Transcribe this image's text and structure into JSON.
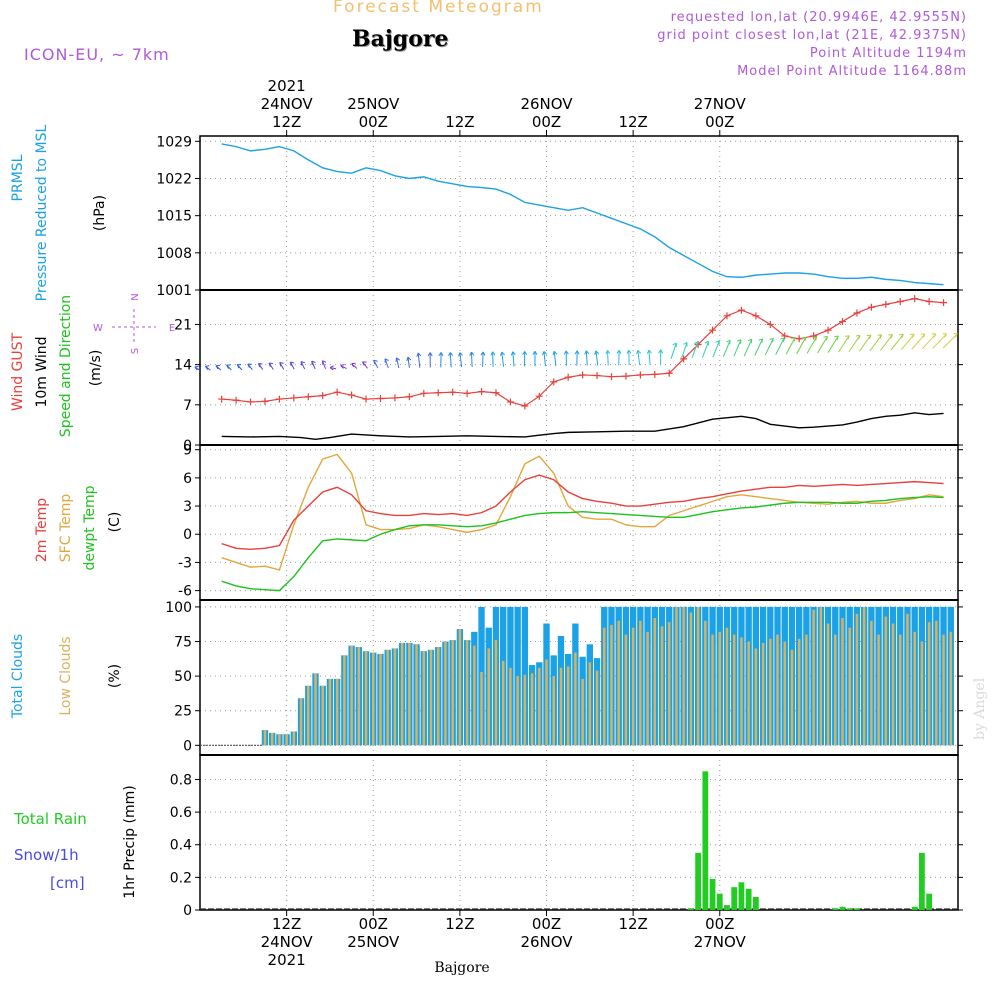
{
  "header": {
    "forecast_label": "Forecast Meteogram",
    "location": "Bajgore",
    "model": "ICON-EU, ~ 7km",
    "requested": "requested lon,lat (20.9946E, 42.9555N)",
    "gridpoint": "grid point closest lon,lat (21E, 42.9375N)",
    "point_alt": "Point Altitude 1194m",
    "model_alt": "Model Point Altitude 1164.88m",
    "footer_location": "Bajgore",
    "watermark": "by Angel"
  },
  "colors": {
    "pressure": "#1ba1e6",
    "gust": "#e8403b",
    "wind10": "#000000",
    "direction_label": "#1dc21d",
    "temp2m": "#e8403b",
    "sfc": "#e2a73c",
    "dew": "#1dc21d",
    "cloud_total": "#1ba1e6",
    "cloud_low": "#d8b25c",
    "rain": "#22cc22",
    "snow": "#4a4ae0",
    "purple": "#b05ad8"
  },
  "chart_data": [
    {
      "type": "line",
      "name": "pressure",
      "title": "PRMSL Pressure Reduced to MSL",
      "ylabel": "(hPa)",
      "ylim": [
        1001,
        1030
      ],
      "yticks": [
        1001,
        1008,
        1015,
        1022,
        1029
      ],
      "x_hours": [
        3,
        5,
        7,
        9,
        11,
        13,
        15,
        17,
        19,
        21,
        23,
        25,
        27,
        29,
        31,
        33,
        35,
        37,
        39,
        41,
        43,
        45,
        47,
        49,
        51,
        53,
        55,
        57,
        59,
        61,
        63,
        65,
        67,
        69,
        71,
        73,
        75,
        77,
        79,
        81,
        83,
        85,
        87,
        89,
        91,
        93,
        95,
        97,
        99,
        101,
        103
      ],
      "values": [
        1028.5,
        1028,
        1027.2,
        1027.5,
        1028,
        1027.2,
        1025.5,
        1024,
        1023.3,
        1023,
        1024,
        1023.5,
        1022.5,
        1022,
        1022.3,
        1021.5,
        1021,
        1020.5,
        1020.3,
        1020,
        1019,
        1017.5,
        1017,
        1016.5,
        1016,
        1016.5,
        1015.5,
        1014.5,
        1013.5,
        1012.5,
        1011,
        1009,
        1007.5,
        1006,
        1004.5,
        1003.5,
        1003.4,
        1003.8,
        1004,
        1004.2,
        1004.2,
        1004,
        1003.5,
        1003.2,
        1003.2,
        1003.4,
        1003,
        1002.8,
        1002.4,
        1002.2,
        1002
      ]
    },
    {
      "type": "line",
      "name": "wind",
      "ylabels": [
        "Wind GUST",
        "10m Wind",
        "Speed and Direction",
        "(m/s)"
      ],
      "ylim": [
        0,
        27
      ],
      "yticks": [
        0,
        7,
        14,
        21
      ],
      "compass": {
        "n": "N",
        "e": "E",
        "s": "S",
        "w": "W"
      },
      "gust_hours": [
        3,
        5,
        7,
        9,
        11,
        13,
        15,
        17,
        19,
        21,
        23,
        25,
        27,
        29,
        31,
        33,
        35,
        37,
        39,
        41,
        43,
        45,
        47,
        49,
        51,
        53,
        55,
        57,
        59,
        61,
        63,
        65,
        67,
        69,
        71,
        73,
        75,
        77,
        79,
        81,
        83,
        85,
        87,
        89,
        91,
        93,
        95,
        97,
        99,
        101,
        103
      ],
      "gust": [
        8,
        7.8,
        7.5,
        7.6,
        8,
        8.2,
        8.4,
        8.6,
        9.2,
        8.7,
        8,
        8.1,
        8.2,
        8.4,
        9,
        9.1,
        9.2,
        9,
        9.3,
        9.1,
        7.5,
        6.8,
        8.5,
        11,
        11.8,
        12.2,
        12.1,
        11.9,
        12,
        12.2,
        12.3,
        12.5,
        15,
        17.5,
        20,
        22.5,
        23.5,
        22.5,
        21,
        19,
        18.5,
        19,
        20,
        21.5,
        23,
        24,
        24.5,
        25,
        25.5,
        25,
        24.8
      ],
      "wind10_hours": [
        3,
        7,
        11,
        14,
        16,
        18,
        21,
        25,
        29,
        33,
        37,
        41,
        45,
        47,
        49,
        51,
        55,
        59,
        63,
        67,
        71,
        75,
        77,
        79,
        81,
        83,
        85,
        87,
        89,
        91,
        93,
        95,
        97,
        99,
        101,
        103
      ],
      "wind10": [
        1.5,
        1.4,
        1.5,
        1.3,
        1.0,
        1.3,
        1.9,
        1.6,
        1.4,
        1.5,
        1.6,
        1.5,
        1.4,
        1.7,
        2.0,
        2.2,
        2.3,
        2.4,
        2.4,
        3.2,
        4.5,
        5.0,
        4.6,
        3.6,
        3.3,
        3.0,
        3.1,
        3.3,
        3.5,
        4.0,
        4.6,
        5.0,
        5.2,
        5.6,
        5.3,
        5.5
      ]
    },
    {
      "type": "line",
      "name": "temperature",
      "ylabels": [
        "2m Temp",
        "SFC Temp",
        "dewpt Temp",
        "(C)"
      ],
      "ylim": [
        -7,
        9.5
      ],
      "yticks": [
        -6,
        -3,
        0,
        3,
        6,
        9
      ],
      "x_hours": [
        3,
        5,
        7,
        9,
        11,
        13,
        15,
        17,
        19,
        21,
        23,
        25,
        27,
        29,
        31,
        33,
        35,
        37,
        39,
        41,
        43,
        45,
        47,
        49,
        51,
        53,
        55,
        57,
        59,
        61,
        63,
        65,
        67,
        69,
        71,
        73,
        75,
        77,
        79,
        81,
        83,
        85,
        87,
        89,
        91,
        93,
        95,
        97,
        99,
        101,
        103
      ],
      "temp2m": [
        -1,
        -1.5,
        -1.6,
        -1.5,
        -1.2,
        1.5,
        3,
        4.5,
        5,
        4.2,
        2.5,
        2.2,
        2,
        2,
        2.2,
        2.1,
        2.2,
        2,
        2.3,
        3,
        4.5,
        5.8,
        6.3,
        5.8,
        4.5,
        3.8,
        3.5,
        3.3,
        3,
        3,
        3.2,
        3.4,
        3.5,
        3.8,
        4,
        4.3,
        4.6,
        4.8,
        5,
        5,
        5.2,
        5.1,
        5.2,
        5.3,
        5.2,
        5.3,
        5.4,
        5.5,
        5.6,
        5.5,
        5.4
      ],
      "sfc": [
        -2.5,
        -3,
        -3.5,
        -3.4,
        -3.8,
        1,
        5,
        8,
        8.5,
        6.5,
        1,
        0.5,
        0.5,
        0.6,
        1,
        0.8,
        0.5,
        0.2,
        0.5,
        1,
        4,
        7.5,
        8.3,
        6.5,
        3,
        1.8,
        1.6,
        1.6,
        1,
        0.8,
        0.8,
        2,
        2.5,
        3,
        3.5,
        4,
        4.2,
        4,
        3.8,
        3.6,
        3.4,
        3.3,
        3.2,
        3.4,
        3.5,
        3.3,
        3.3,
        3.6,
        3.8,
        4.2,
        4
      ],
      "dew": [
        -5,
        -5.5,
        -5.8,
        -5.9,
        -6,
        -4.5,
        -2.5,
        -0.7,
        -0.5,
        -0.6,
        -0.7,
        0,
        0.5,
        0.9,
        1,
        1,
        0.9,
        0.8,
        0.9,
        1.2,
        1.6,
        2,
        2.2,
        2.3,
        2.3,
        2.4,
        2.3,
        2.2,
        2.1,
        2,
        1.9,
        1.8,
        1.8,
        2.1,
        2.4,
        2.6,
        2.8,
        2.9,
        3.1,
        3.3,
        3.4,
        3.4,
        3.4,
        3.3,
        3.3,
        3.5,
        3.6,
        3.8,
        3.9,
        4,
        3.9
      ]
    },
    {
      "type": "bar",
      "name": "clouds",
      "ylabels": [
        "Total Clouds",
        "Low Clouds",
        "(%)"
      ],
      "ylim": [
        -7,
        105
      ],
      "yticks": [
        0,
        25,
        50,
        75,
        100
      ],
      "x_hours": [
        9,
        10,
        11,
        12,
        13,
        14,
        15,
        16,
        17,
        18,
        19,
        20,
        21,
        22,
        23,
        24,
        25,
        26,
        27,
        28,
        29,
        30,
        31,
        32,
        33,
        34,
        35,
        36,
        37,
        38,
        39,
        40,
        41,
        42,
        43,
        44,
        45,
        46,
        47,
        48,
        49,
        50,
        51,
        52,
        53,
        54,
        55,
        56,
        57,
        58,
        59,
        60,
        61,
        62,
        63,
        64,
        65,
        66,
        67,
        68,
        69,
        70,
        71,
        72,
        73,
        74,
        75,
        76,
        77,
        78,
        79,
        80,
        81,
        82,
        83,
        84,
        85,
        86,
        87,
        88,
        89,
        90,
        91,
        92,
        93,
        94,
        95,
        96,
        97,
        98,
        99,
        100,
        101,
        102,
        103,
        104
      ],
      "total": [
        11,
        9,
        8,
        8,
        10,
        34,
        43,
        52,
        43,
        48,
        48,
        65,
        72,
        71,
        68,
        67,
        66,
        69,
        70,
        74,
        74,
        73,
        68,
        69,
        71,
        75,
        76,
        84,
        76,
        82,
        100,
        85,
        100,
        100,
        100,
        100,
        100,
        58,
        60,
        88,
        65,
        79,
        66,
        88,
        64,
        73,
        63,
        100,
        100,
        100,
        100,
        100,
        100,
        100,
        100,
        100,
        100,
        100,
        100,
        100,
        100,
        100,
        100,
        100,
        100,
        100,
        100,
        100,
        100,
        100,
        100,
        100,
        100,
        100,
        100,
        100,
        100,
        100,
        100,
        100,
        100,
        100,
        100,
        100,
        100,
        100,
        100,
        100,
        100,
        100,
        100,
        100,
        100,
        100,
        100,
        100
      ],
      "low": [
        11,
        9,
        8,
        8,
        10,
        34,
        43,
        52,
        43,
        48,
        48,
        65,
        72,
        71,
        68,
        67,
        66,
        69,
        70,
        74,
        74,
        73,
        68,
        69,
        71,
        75,
        76,
        84,
        76,
        72,
        53,
        70,
        76,
        61,
        56,
        50,
        51,
        52,
        56,
        62,
        50,
        56,
        57,
        67,
        48,
        60,
        54,
        85,
        87,
        90,
        80,
        85,
        90,
        82,
        92,
        86,
        89,
        100,
        100,
        96,
        100,
        90,
        80,
        82,
        85,
        80,
        78,
        75,
        70,
        74,
        77,
        80,
        75,
        69,
        77,
        80,
        98,
        100,
        88,
        80,
        92,
        85,
        95,
        100,
        90,
        80,
        93,
        88,
        80,
        95,
        82,
        75,
        89,
        90,
        80,
        82
      ]
    },
    {
      "type": "bar",
      "name": "precip",
      "ylabels": [
        "1hr Precip (mm)"
      ],
      "legend": {
        "rain": "Total  Rain",
        "snow": "Snow/1h",
        "unit": "[cm]"
      },
      "ylim": [
        0,
        0.95
      ],
      "yticks": [
        0,
        0.2,
        0.4,
        0.6,
        0.8
      ],
      "x_hours": [
        64,
        65,
        66,
        67,
        68,
        69,
        70,
        71,
        72,
        73,
        74,
        75,
        76,
        77,
        78,
        79,
        80,
        81,
        82,
        83,
        84,
        85,
        86,
        87,
        88,
        89,
        90,
        91,
        92,
        93,
        94,
        95,
        96,
        97,
        98,
        99,
        100,
        101,
        102,
        103,
        104
      ],
      "values": [
        0,
        0,
        0,
        0,
        0.01,
        0.35,
        0.85,
        0.19,
        0.1,
        0.03,
        0.14,
        0.17,
        0.13,
        0.08,
        0,
        0,
        0,
        0,
        0,
        0,
        0,
        0,
        0,
        0,
        0.01,
        0.02,
        0.01,
        0.01,
        0,
        0,
        0,
        0,
        0,
        0,
        0,
        0.02,
        0.35,
        0.1,
        0,
        0,
        0
      ]
    }
  ],
  "xaxis": {
    "hours_from": 0,
    "start": "24NOV 2021 00Z",
    "ticks": [
      {
        "h": 12,
        "top": "12Z",
        "mid": "24NOV",
        "year": "2021"
      },
      {
        "h": 24,
        "top": "00Z",
        "mid": "25NOV",
        "year": ""
      },
      {
        "h": 36,
        "top": "12Z",
        "mid": "",
        "year": ""
      },
      {
        "h": 48,
        "top": "00Z",
        "mid": "26NOV",
        "year": ""
      },
      {
        "h": 60,
        "top": "12Z",
        "mid": "",
        "year": ""
      },
      {
        "h": 72,
        "top": "00Z",
        "mid": "27NOV",
        "year": ""
      }
    ]
  }
}
